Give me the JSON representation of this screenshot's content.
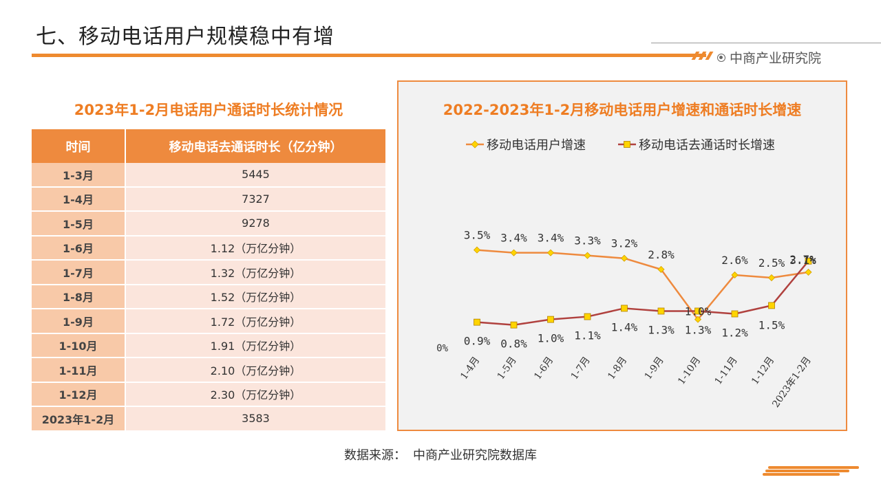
{
  "page": {
    "title": "七、移动电话用户规模稳中有增",
    "brand": "中商产业研究院",
    "source_label": "数据来源：",
    "source_text": "中商产业研究院数据库"
  },
  "table": {
    "title": "2023年1-2月电话用户通话时长统计情况",
    "headers": [
      "时间",
      "移动电话去通话时长（亿分钟）"
    ],
    "rows": [
      [
        "1-3月",
        "5445"
      ],
      [
        "1-4月",
        "7327"
      ],
      [
        "1-5月",
        "9278"
      ],
      [
        "1-6月",
        "1.12（万亿分钟）"
      ],
      [
        "1-7月",
        "1.32（万亿分钟）"
      ],
      [
        "1-8月",
        "1.52（万亿分钟）"
      ],
      [
        "1-9月",
        "1.72（万亿分钟）"
      ],
      [
        "1-10月",
        "1.91（万亿分钟）"
      ],
      [
        "1-11月",
        "2.10（万亿分钟）"
      ],
      [
        "1-12月",
        "2.30（万亿分钟）"
      ],
      [
        "2023年1-2月",
        "3583"
      ]
    ]
  },
  "colors": {
    "accent": "#ee8a2f",
    "series1": "#ee8a3e",
    "series2": "#b0413e",
    "marker": "#ffd400"
  },
  "chart_data": {
    "type": "line",
    "title": "2022-2023年1-2月移动电话用户增速和通话时长增速",
    "xlabel": "",
    "ylabel": "",
    "y_tick_label": "0%",
    "ylim": [
      0,
      4.2
    ],
    "grid": false,
    "legend": "top",
    "categories": [
      "1-4月",
      "1-5月",
      "1-6月",
      "1-7月",
      "1-8月",
      "1-9月",
      "1-10月",
      "1-11月",
      "1-12月",
      "2023年1-2月"
    ],
    "series": [
      {
        "name": "移动电话用户增速",
        "marker": "diamond",
        "values": [
          3.5,
          3.4,
          3.4,
          3.3,
          3.2,
          2.8,
          1.0,
          2.6,
          2.5,
          2.7
        ],
        "labels": [
          "3.5%",
          "3.4%",
          "3.4%",
          "3.3%",
          "3.2%",
          "2.8%",
          "1.0%",
          "2.6%",
          "2.5%",
          "2.7%"
        ]
      },
      {
        "name": "移动电话去通话时长增速",
        "marker": "square",
        "values": [
          0.9,
          0.8,
          1.0,
          1.1,
          1.4,
          1.3,
          1.3,
          1.2,
          1.5,
          3.1
        ],
        "labels": [
          "0.9%",
          "0.8%",
          "1.0%",
          "1.1%",
          "1.4%",
          "1.3%",
          "1.3%",
          "1.2%",
          "1.5%",
          "3.1%"
        ]
      }
    ]
  }
}
